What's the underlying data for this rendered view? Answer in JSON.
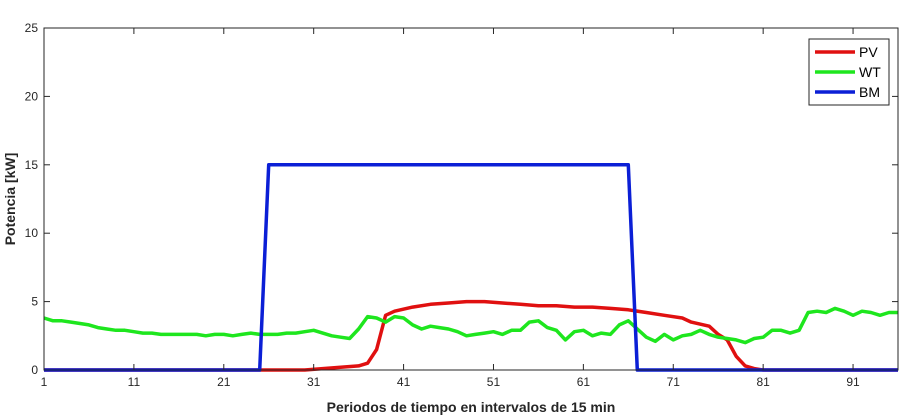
{
  "chart_data": {
    "type": "line",
    "title": "",
    "xlabel": "Periodos de tiempo en intervalos de 15 min",
    "ylabel": "Potencia [kW]",
    "xlim": [
      1,
      96
    ],
    "ylim": [
      0,
      25
    ],
    "xticks": [
      1,
      11,
      21,
      31,
      41,
      51,
      61,
      71,
      81,
      91
    ],
    "yticks": [
      0,
      5,
      10,
      15,
      20,
      25
    ],
    "grid": false,
    "legend": "top-right",
    "series": [
      {
        "name": "PV",
        "color": "#e01010",
        "x": [
          1,
          25,
          26,
          30,
          32,
          34,
          36,
          37,
          38,
          39,
          40,
          42,
          44,
          46,
          48,
          50,
          52,
          54,
          56,
          58,
          60,
          62,
          64,
          66,
          68,
          70,
          72,
          73,
          75,
          76,
          77,
          78,
          79,
          80,
          81,
          96
        ],
        "y": [
          0,
          0,
          0,
          0,
          0.1,
          0.2,
          0.3,
          0.5,
          1.5,
          4.0,
          4.3,
          4.6,
          4.8,
          4.9,
          5.0,
          5.0,
          4.9,
          4.8,
          4.7,
          4.7,
          4.6,
          4.6,
          4.5,
          4.4,
          4.2,
          4.0,
          3.8,
          3.5,
          3.2,
          2.6,
          2.2,
          1.0,
          0.3,
          0.1,
          0,
          0
        ]
      },
      {
        "name": "WT",
        "color": "#1ee61e",
        "x": [
          1,
          2,
          3,
          4,
          5,
          6,
          7,
          8,
          9,
          10,
          11,
          12,
          13,
          14,
          15,
          16,
          17,
          18,
          19,
          20,
          21,
          22,
          23,
          24,
          25,
          26,
          27,
          28,
          29,
          30,
          31,
          32,
          33,
          34,
          35,
          36,
          37,
          38,
          39,
          40,
          41,
          42,
          43,
          44,
          45,
          46,
          47,
          48,
          49,
          50,
          51,
          52,
          53,
          54,
          55,
          56,
          57,
          58,
          59,
          60,
          61,
          62,
          63,
          64,
          65,
          66,
          67,
          68,
          69,
          70,
          71,
          72,
          73,
          74,
          75,
          76,
          77,
          78,
          79,
          80,
          81,
          82,
          83,
          84,
          85,
          86,
          87,
          88,
          89,
          90,
          91,
          92,
          93,
          94,
          95,
          96
        ],
        "y": [
          3.8,
          3.6,
          3.6,
          3.5,
          3.4,
          3.3,
          3.1,
          3.0,
          2.9,
          2.9,
          2.8,
          2.7,
          2.7,
          2.6,
          2.6,
          2.6,
          2.6,
          2.6,
          2.5,
          2.6,
          2.6,
          2.5,
          2.6,
          2.7,
          2.6,
          2.6,
          2.6,
          2.7,
          2.7,
          2.8,
          2.9,
          2.7,
          2.5,
          2.4,
          2.3,
          3.0,
          3.9,
          3.8,
          3.5,
          3.9,
          3.8,
          3.3,
          3.0,
          3.2,
          3.1,
          3.0,
          2.8,
          2.5,
          2.6,
          2.7,
          2.8,
          2.6,
          2.9,
          2.9,
          3.5,
          3.6,
          3.1,
          2.9,
          2.2,
          2.8,
          2.9,
          2.5,
          2.7,
          2.6,
          3.3,
          3.6,
          3.0,
          2.4,
          2.1,
          2.6,
          2.2,
          2.5,
          2.6,
          2.9,
          2.6,
          2.4,
          2.3,
          2.2,
          2.0,
          2.3,
          2.4,
          2.9,
          2.9,
          2.7,
          2.9,
          4.2,
          4.3,
          4.2,
          4.5,
          4.3,
          4.0,
          4.3,
          4.2,
          4.0,
          4.2,
          4.2
        ]
      },
      {
        "name": "BM",
        "color": "#0b1fd6",
        "x": [
          1,
          25,
          26,
          66,
          67,
          96
        ],
        "y": [
          0,
          0,
          15,
          15,
          0,
          0
        ]
      }
    ]
  }
}
